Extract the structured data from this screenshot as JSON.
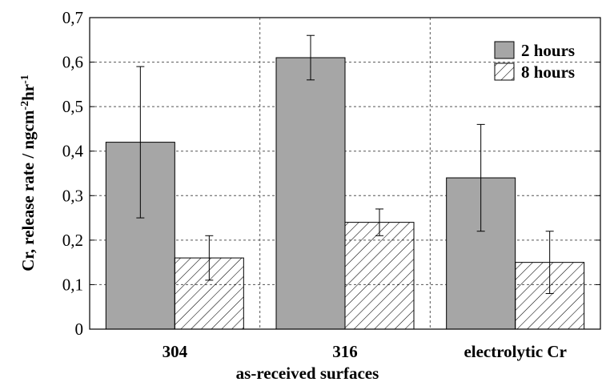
{
  "chart_data": {
    "type": "bar",
    "xlabel": "as-received surfaces",
    "ylabel": {
      "parts": [
        {
          "text": "Cr, release rate / ngcm",
          "sup": false
        },
        {
          "text": "-2",
          "sup": true
        },
        {
          "text": "hr",
          "sup": false
        },
        {
          "text": "-1",
          "sup": true
        }
      ]
    },
    "categories": [
      "304",
      "316",
      "electrolytic Cr"
    ],
    "series": [
      {
        "name": "2 hours",
        "values": [
          0.42,
          0.61,
          0.34
        ],
        "error_low": [
          0.25,
          0.56,
          0.22
        ],
        "error_high": [
          0.59,
          0.66,
          0.46
        ],
        "fill": "#a6a6a6",
        "pattern": "solid"
      },
      {
        "name": "8 hours",
        "values": [
          0.16,
          0.24,
          0.15
        ],
        "error_low": [
          0.11,
          0.21,
          0.08
        ],
        "error_high": [
          0.21,
          0.27,
          0.22
        ],
        "fill": "#ffffff",
        "pattern": "hatch"
      }
    ],
    "ylim": [
      0,
      0.7
    ],
    "yticks": [
      "0",
      "0,1",
      "0,2",
      "0,3",
      "0,4",
      "0,5",
      "0,6",
      "0,7"
    ],
    "grid": true,
    "legend_position": "top-right",
    "colors": {
      "bar_gray": "#a6a6a6",
      "hatch": "#000000",
      "grid": "#555555"
    }
  }
}
